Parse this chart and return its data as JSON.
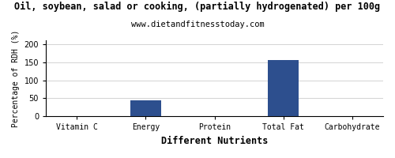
{
  "title": "Oil, soybean, salad or cooking, (partially hydrogenated) per 100g",
  "subtitle": "www.dietandfitnesstoday.com",
  "xlabel": "Different Nutrients",
  "ylabel": "Percentage of RDH (%)",
  "categories": [
    "Vitamin C",
    "Energy",
    "Protein",
    "Total Fat",
    "Carbohydrate"
  ],
  "values": [
    0,
    45,
    0,
    155,
    0
  ],
  "bar_color": "#2d4f8e",
  "ylim": [
    0,
    210
  ],
  "yticks": [
    0,
    50,
    100,
    150,
    200
  ],
  "background_color": "#ffffff",
  "grid_color": "#cccccc",
  "title_fontsize": 8.5,
  "subtitle_fontsize": 7.5,
  "axis_label_fontsize": 7,
  "tick_fontsize": 7,
  "xlabel_fontsize": 8.5,
  "bar_width": 0.45
}
